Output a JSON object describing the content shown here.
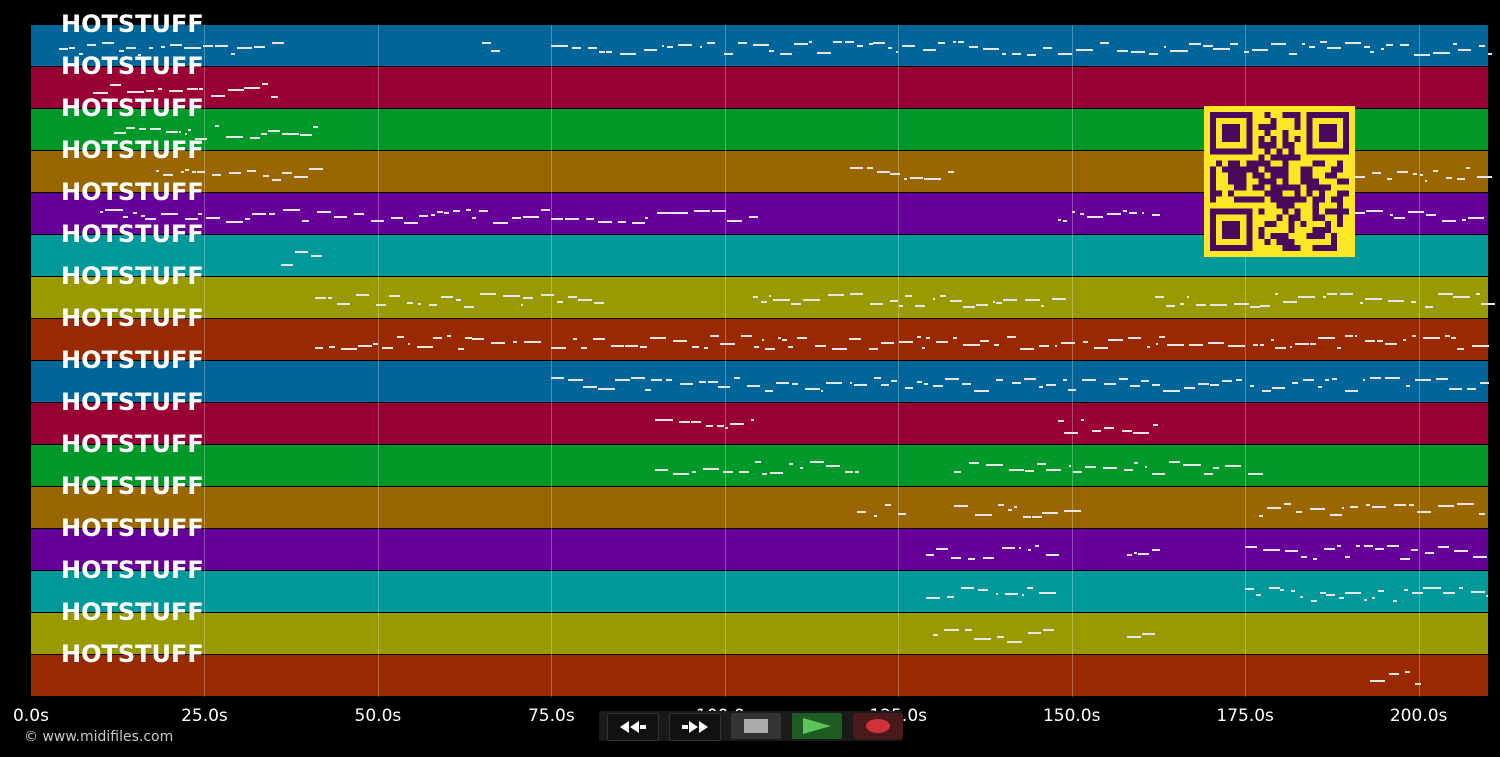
{
  "tracks": [
    {
      "label": "HOTSTUFF",
      "color": "#006699"
    },
    {
      "label": "HOTSTUFF",
      "color": "#990033"
    },
    {
      "label": "HOTSTUFF",
      "color": "#009929"
    },
    {
      "label": "HOTSTUFF",
      "color": "#996600"
    },
    {
      "label": "HOTSTUFF",
      "color": "#660099"
    },
    {
      "label": "HOTSTUFF",
      "color": "#009999"
    },
    {
      "label": "HOTSTUFF",
      "color": "#999900"
    },
    {
      "label": "HOTSTUFF",
      "color": "#992900"
    },
    {
      "label": "HOTSTUFF",
      "color": "#006699"
    },
    {
      "label": "HOTSTUFF",
      "color": "#990033"
    },
    {
      "label": "HOTSTUFF",
      "color": "#009929"
    },
    {
      "label": "HOTSTUFF",
      "color": "#996600"
    },
    {
      "label": "HOTSTUFF",
      "color": "#660099"
    },
    {
      "label": "HOTSTUFF",
      "color": "#009999"
    },
    {
      "label": "HOTSTUFF",
      "color": "#999900"
    },
    {
      "label": "HOTSTUFF",
      "color": "#992900"
    }
  ],
  "time_axis": {
    "ticks": [
      "0.0s",
      "25.0s",
      "50.0s",
      "75.0s",
      "100.0s",
      "125.0s",
      "150.0s",
      "175.0s",
      "200.0s"
    ],
    "tick_seconds": [
      0,
      25,
      50,
      75,
      100,
      125,
      150,
      175,
      200
    ],
    "max_seconds": 210
  },
  "copyright": "© www.midifiles.com",
  "transport": {
    "rewind_icon": "rewind-icon",
    "forward_icon": "fast-forward-icon",
    "stop_icon": "stop-icon",
    "play_icon": "play-icon",
    "record_icon": "record-icon"
  },
  "qr_colors": {
    "fg": "#4a0a5c",
    "bg": "#fde725"
  }
}
